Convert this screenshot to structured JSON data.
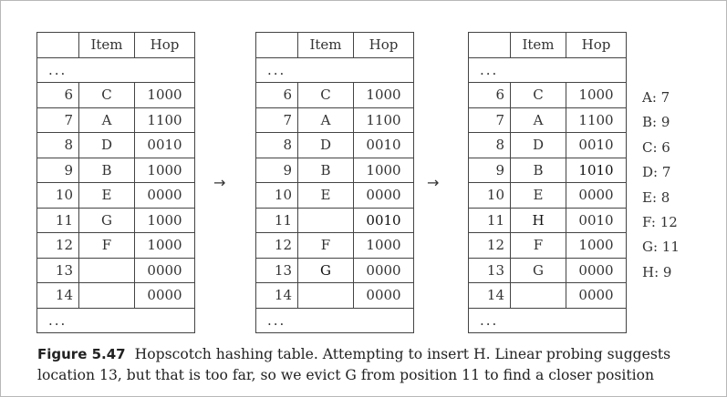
{
  "headers": {
    "index": "",
    "item": "Item",
    "hop": "Hop"
  },
  "ellipsis": "...",
  "arrow": "→",
  "tables": [
    {
      "rows": [
        {
          "index": "6",
          "item": "C",
          "hop": "1000"
        },
        {
          "index": "7",
          "item": "A",
          "hop": "1100"
        },
        {
          "index": "8",
          "item": "D",
          "hop": "0010"
        },
        {
          "index": "9",
          "item": "B",
          "hop": "1000"
        },
        {
          "index": "10",
          "item": "E",
          "hop": "0000"
        },
        {
          "index": "11",
          "item": "G",
          "hop": "1000"
        },
        {
          "index": "12",
          "item": "F",
          "hop": "1000"
        },
        {
          "index": "13",
          "item": "",
          "hop": "0000"
        },
        {
          "index": "14",
          "item": "",
          "hop": "0000"
        }
      ]
    },
    {
      "rows": [
        {
          "index": "6",
          "item": "C",
          "hop": "1000"
        },
        {
          "index": "7",
          "item": "A",
          "hop": "1100"
        },
        {
          "index": "8",
          "item": "D",
          "hop": "0010"
        },
        {
          "index": "9",
          "item": "B",
          "hop": "1000"
        },
        {
          "index": "10",
          "item": "E",
          "hop": "0000"
        },
        {
          "index": "11",
          "item": "",
          "hop": "0010",
          "hop_bold": true
        },
        {
          "index": "12",
          "item": "F",
          "hop": "1000"
        },
        {
          "index": "13",
          "item": "G",
          "hop": "0000",
          "item_bold": true
        },
        {
          "index": "14",
          "item": "",
          "hop": "0000"
        }
      ]
    },
    {
      "rows": [
        {
          "index": "6",
          "item": "C",
          "hop": "1000"
        },
        {
          "index": "7",
          "item": "A",
          "hop": "1100"
        },
        {
          "index": "8",
          "item": "D",
          "hop": "0010"
        },
        {
          "index": "9",
          "item": "B",
          "hop": "1010",
          "hop_bold": true
        },
        {
          "index": "10",
          "item": "E",
          "hop": "0000"
        },
        {
          "index": "11",
          "item": "H",
          "hop": "0010",
          "item_bold": true
        },
        {
          "index": "12",
          "item": "F",
          "hop": "1000"
        },
        {
          "index": "13",
          "item": "G",
          "hop": "0000"
        },
        {
          "index": "14",
          "item": "",
          "hop": "0000"
        }
      ]
    }
  ],
  "hash_values": [
    "A: 7",
    "B: 9",
    "C: 6",
    "D: 7",
    "E: 8",
    "F: 12",
    "G: 11",
    "H: 9"
  ],
  "caption": {
    "label": "Figure 5.47",
    "text": "Hopscotch hashing table. Attempting to insert H. Linear probing suggests location 13, but that is too far, so we evict G from position 11 to find a closer position"
  }
}
